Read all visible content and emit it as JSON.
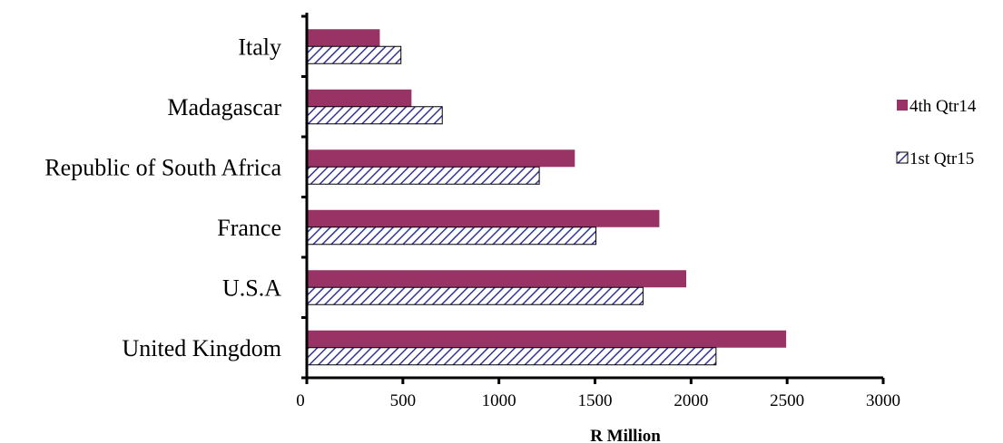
{
  "chart_data": {
    "type": "bar",
    "orientation": "horizontal",
    "categories": [
      "Italy",
      "Madagascar",
      "Republic of South Africa",
      "France",
      "U.S.A",
      "United Kingdom"
    ],
    "series": [
      {
        "name": "4th Qtr14",
        "values": [
          380,
          545,
          1395,
          1835,
          1975,
          2495
        ],
        "color": "#993366",
        "pattern": "solid"
      },
      {
        "name": "1st Qtr15",
        "values": [
          490,
          705,
          1210,
          1505,
          1750,
          2130
        ],
        "color": "#333399",
        "pattern": "diagonal-hatch"
      }
    ],
    "xlabel": "R Million",
    "ylabel": "",
    "xlim": [
      0,
      3000
    ],
    "xticks": [
      "0",
      "500",
      "1000",
      "1500",
      "2000",
      "2500",
      "3000"
    ],
    "grid": false,
    "legend_position": "right"
  }
}
